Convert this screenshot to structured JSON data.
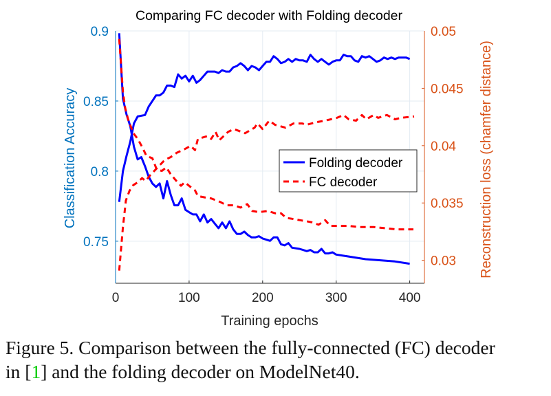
{
  "chart_data": {
    "type": "line",
    "title": "Comparing FC decoder with Folding decoder",
    "xlabel": "Training epochs",
    "ylabel_left": "Classification Accuracy",
    "ylabel_right": "Reconstruction loss (chamfer distance)",
    "xlim": [
      0,
      420
    ],
    "ylim_left": [
      0.72,
      0.9
    ],
    "ylim_right": [
      0.028,
      0.05
    ],
    "xticks": [
      "0",
      "100",
      "200",
      "300",
      "400"
    ],
    "yticks_left": [
      "0.75",
      "0.8",
      "0.85",
      "0.9"
    ],
    "yticks_right": [
      "0.03",
      "0.035",
      "0.04",
      "0.045",
      "0.05"
    ],
    "grid": true,
    "legend_position": "center-right",
    "legend": [
      {
        "label": "Folding decoder",
        "color": "#0000ff",
        "style": "solid"
      },
      {
        "label": "FC decoder",
        "color": "#ff0000",
        "style": "dashed"
      }
    ],
    "colors": {
      "left_axis": "#0072bd",
      "right_axis": "#d95319",
      "folding": "#0000ff",
      "fc": "#ff0000"
    },
    "series": [
      {
        "legend": "Folding decoder",
        "axis": "left",
        "metric": "accuracy",
        "x": [
          5,
          10,
          15,
          20,
          25,
          30,
          40,
          45,
          50,
          55,
          60,
          65,
          70,
          75,
          80,
          85,
          90,
          95,
          100,
          105,
          110,
          115,
          120,
          125,
          135,
          140,
          145,
          150,
          155,
          160,
          165,
          170,
          175,
          180,
          185,
          190,
          195,
          200,
          205,
          210,
          215,
          220,
          225,
          230,
          235,
          240,
          245,
          250,
          255,
          260,
          265,
          270,
          275,
          280,
          285,
          290,
          295,
          300,
          305,
          310,
          315,
          320,
          325,
          330,
          335,
          340,
          345,
          350,
          355,
          360,
          365,
          370,
          375,
          380,
          385,
          390,
          395,
          400
        ],
        "y": [
          0.778,
          0.8,
          0.811,
          0.821,
          0.834,
          0.839,
          0.84,
          0.846,
          0.85,
          0.854,
          0.854,
          0.856,
          0.861,
          0.861,
          0.86,
          0.869,
          0.866,
          0.868,
          0.864,
          0.868,
          0.863,
          0.865,
          0.868,
          0.871,
          0.871,
          0.87,
          0.872,
          0.871,
          0.871,
          0.874,
          0.875,
          0.877,
          0.875,
          0.872,
          0.875,
          0.874,
          0.872,
          0.875,
          0.878,
          0.878,
          0.882,
          0.88,
          0.877,
          0.878,
          0.88,
          0.878,
          0.88,
          0.879,
          0.879,
          0.878,
          0.883,
          0.88,
          0.878,
          0.88,
          0.878,
          0.876,
          0.878,
          0.879,
          0.879,
          0.883,
          0.882,
          0.882,
          0.879,
          0.878,
          0.882,
          0.881,
          0.882,
          0.88,
          0.878,
          0.879,
          0.881,
          0.88,
          0.881,
          0.88,
          0.881,
          0.881,
          0.881,
          0.88
        ]
      },
      {
        "legend": "Folding decoder",
        "axis": "right",
        "metric": "loss",
        "x": [
          5,
          10,
          15,
          20,
          25,
          30,
          35,
          40,
          45,
          50,
          55,
          60,
          65,
          70,
          75,
          80,
          85,
          90,
          95,
          100,
          105,
          110,
          115,
          120,
          125,
          130,
          135,
          140,
          145,
          150,
          155,
          160,
          165,
          170,
          175,
          180,
          185,
          190,
          195,
          200,
          205,
          210,
          215,
          220,
          225,
          230,
          235,
          240,
          250,
          255,
          260,
          265,
          270,
          275,
          280,
          285,
          290,
          295,
          300,
          320,
          340,
          360,
          380,
          400
        ],
        "y": [
          0.0498,
          0.0441,
          0.0427,
          0.0417,
          0.0399,
          0.0388,
          0.039,
          0.0382,
          0.0373,
          0.0367,
          0.0364,
          0.0367,
          0.0354,
          0.0369,
          0.0357,
          0.0348,
          0.0348,
          0.0354,
          0.0344,
          0.0342,
          0.034,
          0.034,
          0.0334,
          0.034,
          0.0333,
          0.0336,
          0.0332,
          0.0328,
          0.0333,
          0.0328,
          0.0334,
          0.0327,
          0.0323,
          0.0323,
          0.0325,
          0.0322,
          0.032,
          0.032,
          0.0321,
          0.0319,
          0.0318,
          0.0317,
          0.032,
          0.032,
          0.0314,
          0.0313,
          0.0315,
          0.0311,
          0.031,
          0.0309,
          0.0308,
          0.0309,
          0.0307,
          0.0307,
          0.031,
          0.0306,
          0.0306,
          0.0307,
          0.0305,
          0.0303,
          0.0301,
          0.03,
          0.0299,
          0.0297
        ]
      },
      {
        "legend": "FC decoder",
        "axis": "left",
        "metric": "accuracy",
        "x": [
          5,
          10,
          14,
          19,
          24,
          30,
          36,
          41,
          47,
          56,
          67,
          75,
          83,
          95,
          102,
          108,
          112,
          125,
          130,
          136,
          141,
          153,
          161,
          176,
          189,
          193,
          200,
          209,
          217,
          231,
          242,
          254,
          259,
          274,
          285,
          301,
          310,
          317,
          327,
          335,
          341,
          351,
          357,
          369,
          380,
          388,
          406
        ],
        "y": [
          0.729,
          0.76,
          0.779,
          0.786,
          0.79,
          0.792,
          0.795,
          0.793,
          0.797,
          0.802,
          0.808,
          0.81,
          0.813,
          0.816,
          0.818,
          0.815,
          0.823,
          0.825,
          0.823,
          0.828,
          0.822,
          0.828,
          0.83,
          0.827,
          0.831,
          0.834,
          0.83,
          0.836,
          0.833,
          0.831,
          0.834,
          0.834,
          0.833,
          0.835,
          0.836,
          0.838,
          0.84,
          0.837,
          0.836,
          0.84,
          0.837,
          0.84,
          0.838,
          0.84,
          0.837,
          0.838,
          0.839
        ]
      },
      {
        "legend": "FC decoder",
        "axis": "right",
        "metric": "loss",
        "x": [
          5,
          10,
          13,
          17,
          24,
          30,
          36,
          42,
          50,
          56,
          63,
          69,
          75,
          83,
          89,
          94,
          102,
          108,
          112,
          120,
          130,
          142,
          151,
          161,
          170,
          179,
          186,
          195,
          207,
          217,
          225,
          232,
          242,
          251,
          260,
          268,
          276,
          285,
          292,
          299,
          317,
          332,
          351,
          366,
          382,
          405
        ],
        "y": [
          0.0493,
          0.0447,
          0.0433,
          0.0423,
          0.0411,
          0.0406,
          0.0399,
          0.0391,
          0.0389,
          0.0379,
          0.0378,
          0.0381,
          0.0375,
          0.0369,
          0.0365,
          0.0368,
          0.0364,
          0.0361,
          0.0356,
          0.0355,
          0.0354,
          0.0351,
          0.0348,
          0.0348,
          0.0346,
          0.0349,
          0.0343,
          0.0342,
          0.0343,
          0.0341,
          0.0341,
          0.0337,
          0.0336,
          0.0335,
          0.0334,
          0.0333,
          0.0331,
          0.0335,
          0.033,
          0.033,
          0.033,
          0.0329,
          0.0329,
          0.0328,
          0.0327,
          0.0327
        ]
      }
    ]
  },
  "caption": {
    "line1": "Figure 5. Comparison between the fully-connected (FC) decoder",
    "line2_prefix": "in [",
    "citation": "1",
    "line2_suffix": "] and the folding decoder on ModelNet40."
  }
}
